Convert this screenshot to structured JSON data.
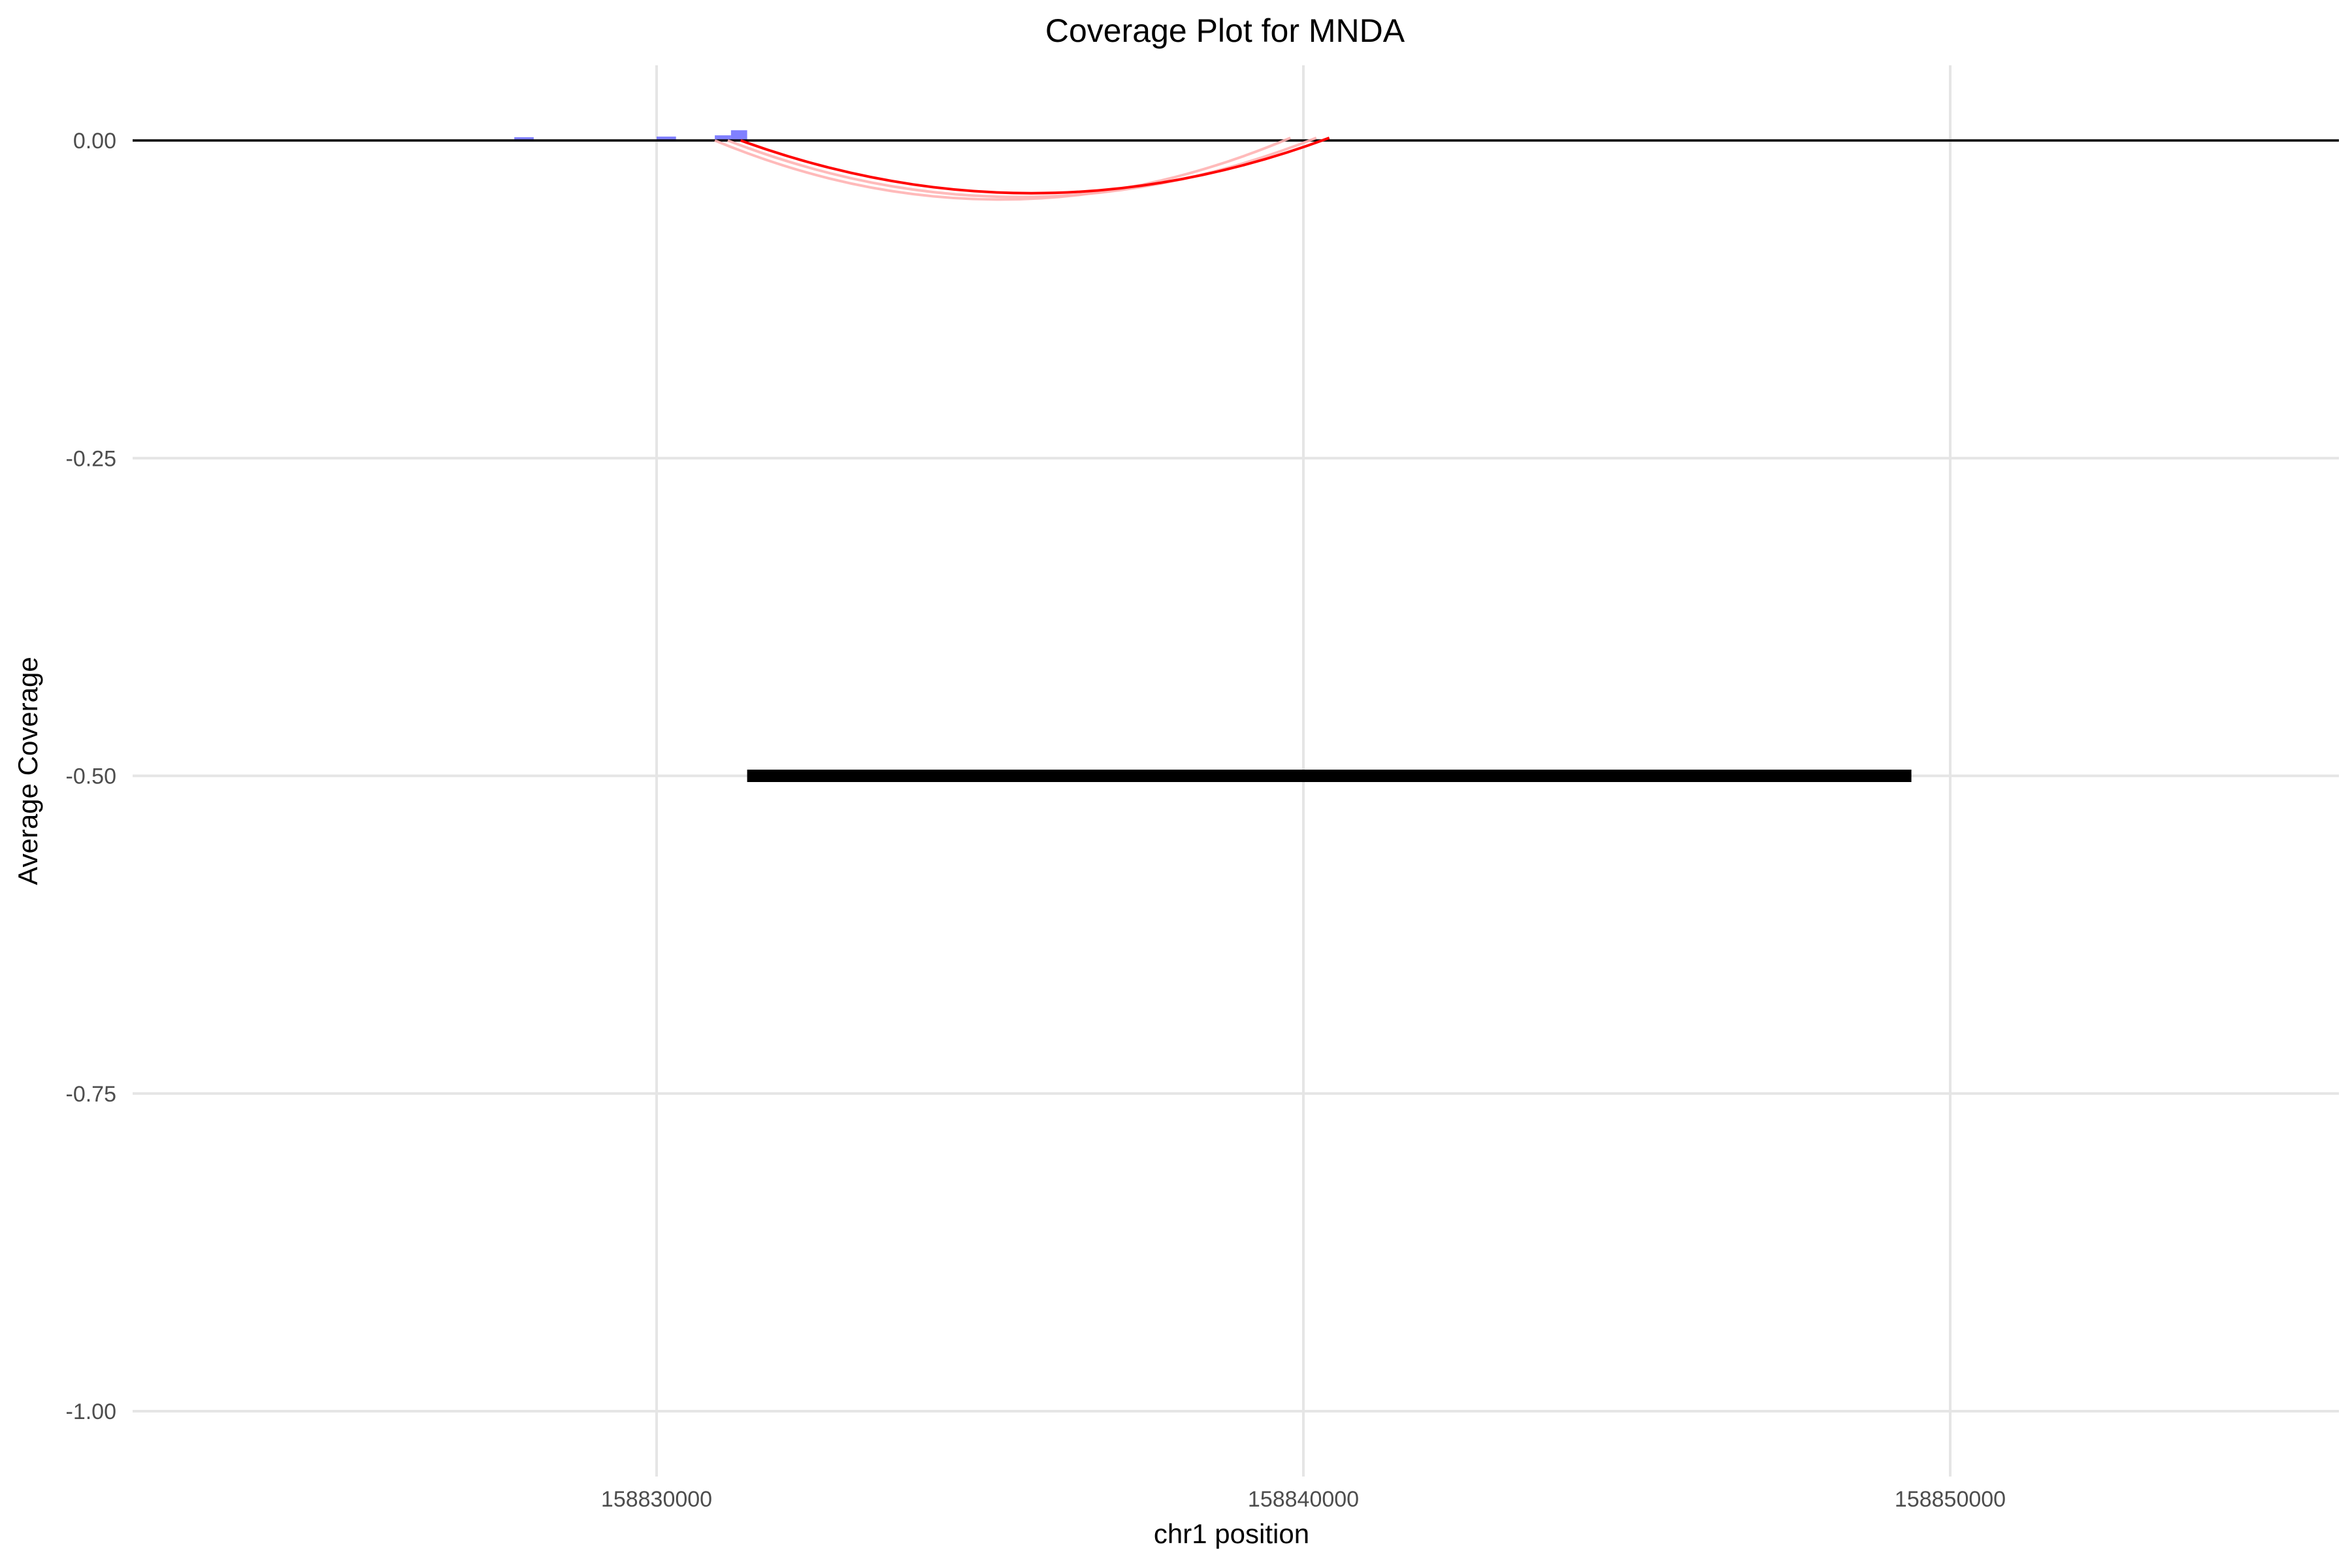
{
  "chart_data": {
    "type": "line",
    "title": "Coverage Plot for MNDA",
    "xlabel": "chr1 position",
    "ylabel": "Average Coverage",
    "xlim": [
      158822000,
      158856000
    ],
    "ylim": [
      -1.05,
      0.06
    ],
    "x_ticks": [
      158830000,
      158840000,
      158850000
    ],
    "x_tick_labels": [
      "158830000",
      "158840000",
      "158850000"
    ],
    "y_ticks": [
      0.0,
      -0.25,
      -0.5,
      -0.75,
      -1.0
    ],
    "y_tick_labels": [
      "0.00",
      "-0.25",
      "-0.50",
      "-0.75",
      "-1.00"
    ],
    "grid": true,
    "baseline_y": 0,
    "colors": {
      "coverage": "#6a6aff",
      "junction": "#ff0000",
      "junction_faint": "#ffb3b3",
      "gene": "#000000",
      "grid": "#e5e5e5"
    },
    "coverage_bars": [
      {
        "start": 158827800,
        "end": 158828100,
        "value": 0.0005
      },
      {
        "start": 158830000,
        "end": 158830300,
        "value": 0.001
      },
      {
        "start": 158830900,
        "end": 158831150,
        "value": 0.002
      },
      {
        "start": 158831150,
        "end": 158831400,
        "value": 0.006
      }
    ],
    "junctions": [
      {
        "start": 158831300,
        "end": 158840400,
        "depth": -0.042,
        "opacity": 1.0
      },
      {
        "start": 158831100,
        "end": 158840200,
        "depth": -0.045,
        "opacity": 0.35
      },
      {
        "start": 158830900,
        "end": 158839800,
        "depth": -0.047,
        "opacity": 0.2
      }
    ],
    "gene_segment": {
      "start": 158831400,
      "end": 158849400,
      "y": -0.5
    }
  }
}
